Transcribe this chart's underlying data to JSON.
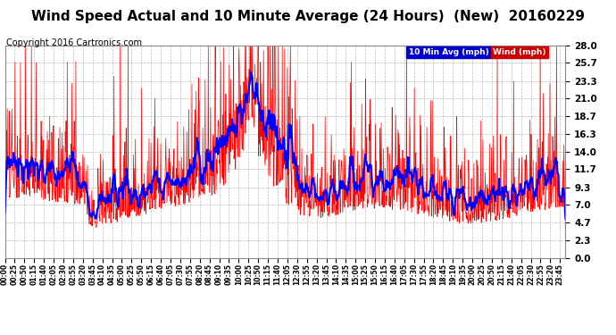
{
  "title": "Wind Speed Actual and 10 Minute Average (24 Hours)  (New)  20160229",
  "copyright": "Copyright 2016 Cartronics.com",
  "legend_labels": [
    "10 Min Avg (mph)",
    "Wind (mph)"
  ],
  "legend_bg_colors": [
    "#0000cc",
    "#cc0000"
  ],
  "yticks": [
    0.0,
    2.3,
    4.7,
    7.0,
    9.3,
    11.7,
    14.0,
    16.3,
    18.7,
    21.0,
    23.3,
    25.7,
    28.0
  ],
  "ylim": [
    0.0,
    28.0
  ],
  "background_color": "#ffffff",
  "plot_bg_color": "#ffffff",
  "grid_color": "#aaaaaa",
  "wind_color": "#ff0000",
  "avg_color": "#0000ff",
  "title_fontsize": 11,
  "copyright_fontsize": 7,
  "wind_lw": 0.5,
  "avg_lw": 1.5
}
